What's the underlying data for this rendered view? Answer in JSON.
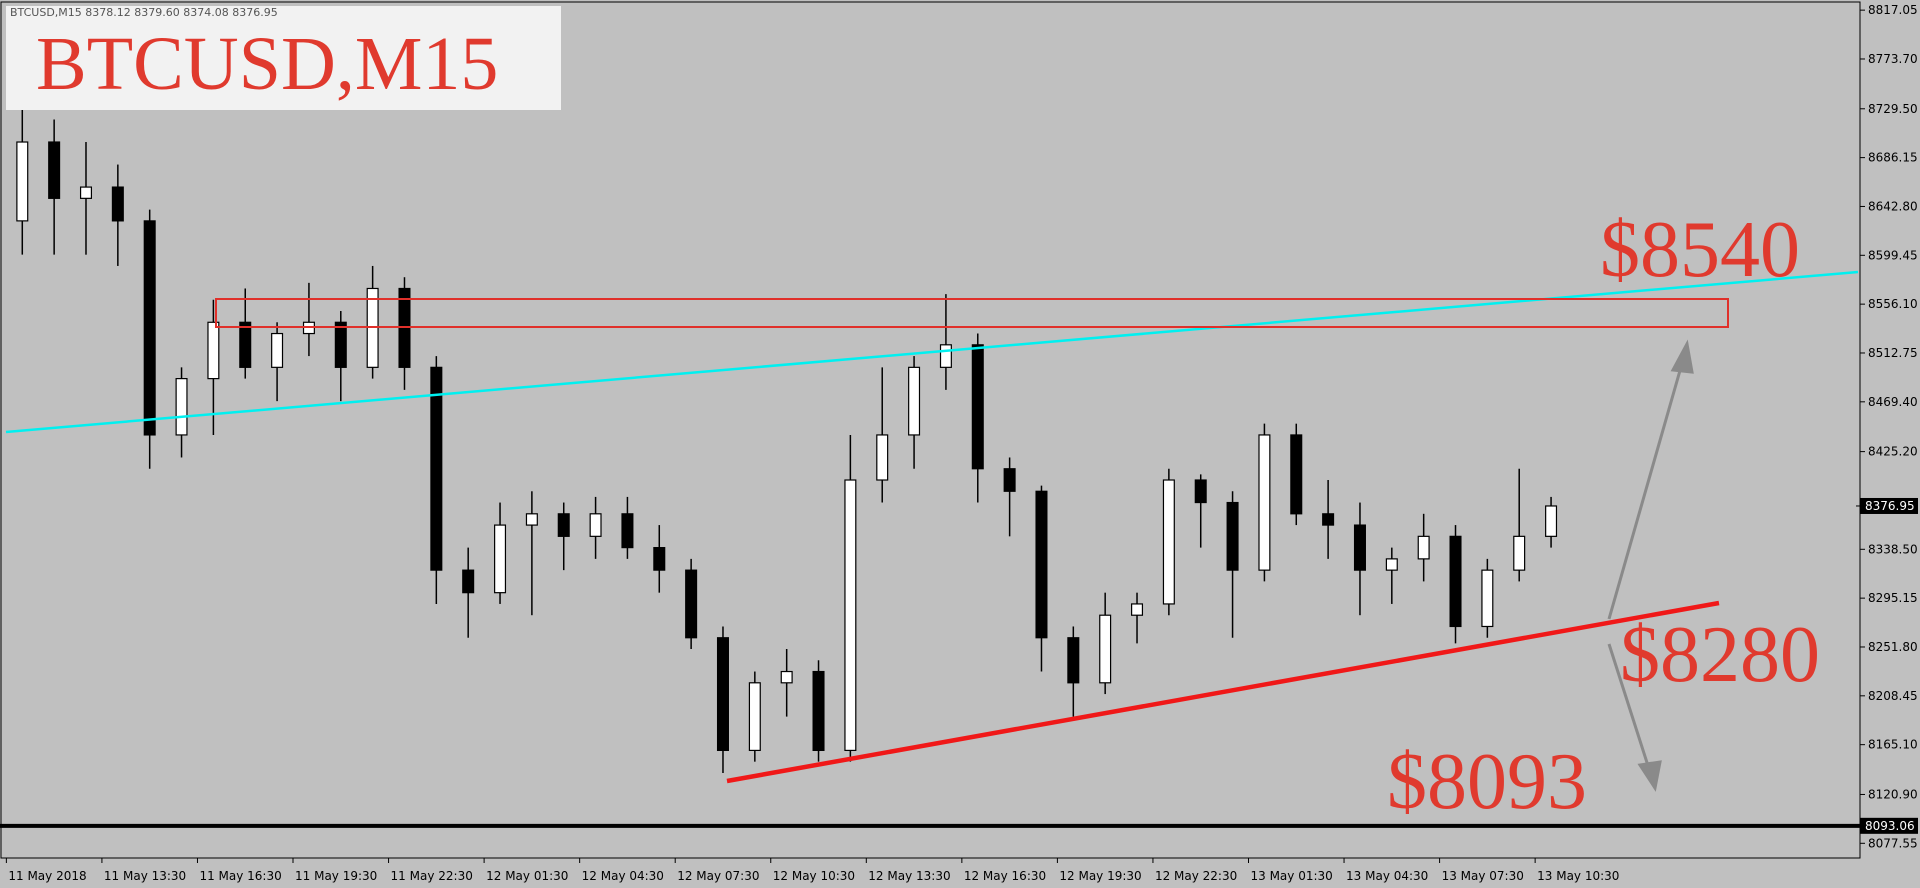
{
  "header_text": "BTCUSD,M15  8378.12 8379.60 8374.08 8376.95",
  "title": "BTCUSD,M15",
  "annotations": [
    "$8540",
    "$8280",
    "$8093"
  ],
  "chart_data": {
    "type": "candlestick",
    "x": [
      0.5,
      1.5,
      2.5,
      3.5,
      4.5,
      5.5,
      6.5,
      7.5,
      8.5,
      9.5,
      10.5,
      11.5,
      12.5,
      13.5,
      14.5,
      15.5,
      16.5,
      17.5,
      18.5,
      19.5,
      20.5,
      21.5,
      22.5,
      23.5,
      24.5,
      25.5,
      26.5,
      27.5,
      28.5,
      29.5,
      30.5,
      31.5,
      32.5,
      33.5,
      34.5,
      35.5,
      36.5,
      37.5,
      38.5,
      39.5,
      40.5,
      41.5,
      42.5,
      43.5,
      44.5,
      45.5,
      46.5,
      47.5,
      48.5
    ],
    "open": [
      8630,
      8700,
      8650,
      8660,
      8630,
      8440,
      8490,
      8540,
      8500,
      8530,
      8540,
      8500,
      8570,
      8500,
      8320,
      8300,
      8360,
      8370,
      8350,
      8370,
      8340,
      8320,
      8260,
      8160,
      8220,
      8230,
      8160,
      8400,
      8440,
      8500,
      8520,
      8410,
      8390,
      8260,
      8220,
      8280,
      8290,
      8400,
      8380,
      8320,
      8440,
      8370,
      8360,
      8320,
      8330,
      8350,
      8270,
      8320,
      8350
    ],
    "high": [
      8735,
      8720,
      8700,
      8680,
      8640,
      8500,
      8560,
      8570,
      8540,
      8575,
      8550,
      8590,
      8580,
      8510,
      8340,
      8380,
      8390,
      8380,
      8385,
      8385,
      8360,
      8330,
      8270,
      8230,
      8250,
      8240,
      8440,
      8500,
      8510,
      8565,
      8530,
      8420,
      8395,
      8270,
      8300,
      8300,
      8410,
      8405,
      8390,
      8450,
      8450,
      8400,
      8380,
      8340,
      8370,
      8360,
      8330,
      8410,
      8385
    ],
    "low": [
      8600,
      8600,
      8600,
      8590,
      8410,
      8420,
      8440,
      8490,
      8470,
      8510,
      8470,
      8490,
      8480,
      8290,
      8260,
      8290,
      8280,
      8320,
      8330,
      8330,
      8300,
      8250,
      8140,
      8150,
      8190,
      8150,
      8150,
      8380,
      8410,
      8480,
      8380,
      8350,
      8230,
      8190,
      8210,
      8255,
      8280,
      8340,
      8260,
      8310,
      8360,
      8330,
      8280,
      8290,
      8310,
      8255,
      8260,
      8310,
      8340
    ],
    "close": [
      8700,
      8650,
      8660,
      8630,
      8440,
      8490,
      8540,
      8500,
      8530,
      8540,
      8500,
      8570,
      8500,
      8320,
      8300,
      8360,
      8370,
      8350,
      8370,
      8340,
      8320,
      8260,
      8160,
      8220,
      8230,
      8160,
      8400,
      8440,
      8500,
      8520,
      8410,
      8390,
      8260,
      8220,
      8280,
      8290,
      8400,
      8380,
      8320,
      8440,
      8370,
      8360,
      8320,
      8330,
      8350,
      8270,
      8320,
      8350,
      8376.95
    ],
    "xlim": [
      -0.2,
      58.2
    ],
    "xticks": [
      {
        "value": 0,
        "label": "11 May 2018"
      },
      {
        "value": 3,
        "label": "11 May 13:30"
      },
      {
        "value": 6,
        "label": "11 May 16:30"
      },
      {
        "value": 9,
        "label": "11 May 19:30"
      },
      {
        "value": 12,
        "label": "11 May 22:30"
      },
      {
        "value": 15,
        "label": "12 May 01:30"
      },
      {
        "value": 18,
        "label": "12 May 04:30"
      },
      {
        "value": 21,
        "label": "12 May 07:30"
      },
      {
        "value": 24,
        "label": "12 May 10:30"
      },
      {
        "value": 27,
        "label": "12 May 13:30"
      },
      {
        "value": 30,
        "label": "12 May 16:30"
      },
      {
        "value": 33,
        "label": "12 May 19:30"
      },
      {
        "value": 36,
        "label": "12 May 22:30"
      },
      {
        "value": 39,
        "label": "13 May 01:30"
      },
      {
        "value": 42,
        "label": "13 May 04:30"
      },
      {
        "value": 45,
        "label": "13 May 07:30"
      },
      {
        "value": 48,
        "label": "13 May 10:30"
      }
    ],
    "ylim": [
      8064.5,
      8822.5
    ],
    "yticks": [
      {
        "value": 8817.05,
        "label": "8817.05"
      },
      {
        "value": 8773.7,
        "label": "8773.70"
      },
      {
        "value": 8729.5,
        "label": "8729.50"
      },
      {
        "value": 8686.15,
        "label": "8686.15"
      },
      {
        "value": 8642.8,
        "label": "8642.80"
      },
      {
        "value": 8599.45,
        "label": "8599.45"
      },
      {
        "value": 8556.1,
        "label": "8556.10"
      },
      {
        "value": 8512.75,
        "label": "8512.75"
      },
      {
        "value": 8469.4,
        "label": "8469.40"
      },
      {
        "value": 8425.2,
        "label": "8425.20"
      },
      {
        "value": 8338.5,
        "label": "8338.50"
      },
      {
        "value": 8295.15,
        "label": "8295.15"
      },
      {
        "value": 8251.8,
        "label": "8251.80"
      },
      {
        "value": 8208.45,
        "label": "8208.45"
      },
      {
        "value": 8165.1,
        "label": "8165.10"
      },
      {
        "value": 8120.9,
        "label": "8120.90"
      },
      {
        "value": 8077.55,
        "label": "8077.55"
      }
    ],
    "current_price": 8376.95,
    "level_line": 8093.06
  }
}
